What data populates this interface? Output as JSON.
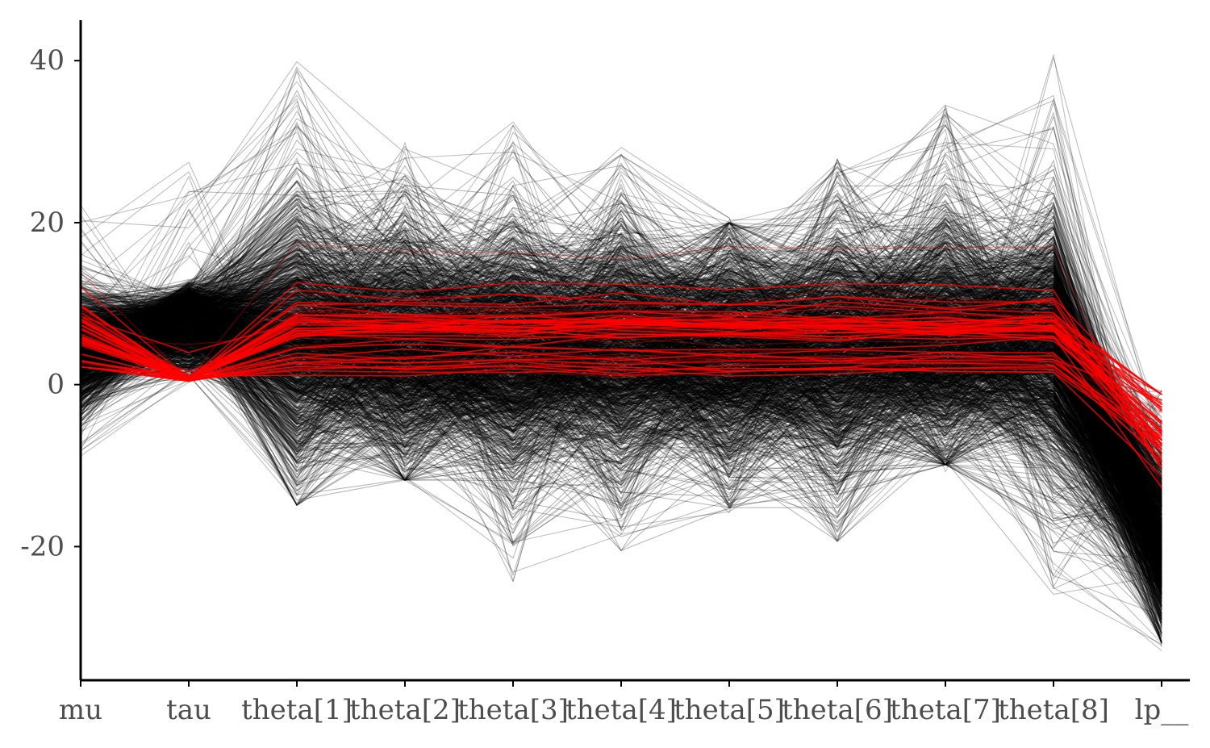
{
  "chart_data": {
    "type": "line",
    "subtype": "parallel-coordinates",
    "title": "",
    "xlabel": "",
    "ylabel": "",
    "categories": [
      "mu",
      "tau",
      "theta[1]",
      "theta[2]",
      "theta[3]",
      "theta[4]",
      "theta[5]",
      "theta[6]",
      "theta[7]",
      "theta[8]",
      "lp__"
    ],
    "y_ticks": [
      -20,
      0,
      20,
      40
    ],
    "y_tick_labels": [
      "-20",
      "0",
      "20",
      "40"
    ],
    "ylim": [
      -36.5,
      45
    ],
    "grid": false,
    "legend": "none",
    "colors": {
      "draws": "#000000",
      "divergent": "#ff0000"
    },
    "series": [
      {
        "role": "typical draws (black band)",
        "values_mean": [
          4.4,
          3.6,
          6.2,
          5.0,
          3.9,
          4.9,
          3.6,
          4.0,
          6.3,
          4.9,
          -15.0
        ],
        "band_low": [
          -4.0,
          0.2,
          -7.0,
          -6.0,
          -10.0,
          -7.0,
          -9.0,
          -10.0,
          -5.0,
          -8.0,
          -28.0
        ],
        "band_high": [
          13.0,
          11.0,
          24.0,
          18.0,
          17.0,
          19.0,
          15.0,
          17.0,
          22.0,
          20.0,
          -3.0
        ],
        "extreme_min": [
          -9.5,
          0.0,
          -15.9,
          -12.8,
          -24.7,
          -21.5,
          -16.2,
          -20.3,
          -10.9,
          -26.2,
          -32.9
        ],
        "extreme_max": [
          22.5,
          27.5,
          40.2,
          30.4,
          33.3,
          29.4,
          21.0,
          28.4,
          35.1,
          41.2,
          -0.4
        ]
      },
      {
        "role": "divergent draws (red)",
        "values_mean": [
          6.3,
          0.8,
          7.2,
          7.0,
          6.8,
          7.1,
          6.6,
          6.7,
          7.0,
          6.8,
          -6.0
        ],
        "band_low": [
          2.2,
          0.4,
          1.5,
          2.0,
          1.2,
          1.8,
          1.0,
          -1.0,
          1.8,
          2.5,
          -18.0
        ],
        "band_high": [
          10.8,
          7.0,
          17.8,
          16.5,
          16.8,
          16.5,
          16.5,
          16.3,
          16.6,
          17.6,
          -1.2
        ]
      }
    ]
  }
}
